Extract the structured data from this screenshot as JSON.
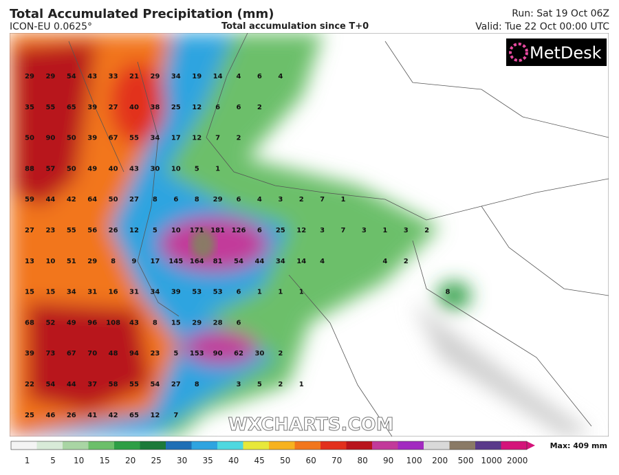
{
  "header": {
    "title": "Total Accumulated Precipitation (mm)",
    "model": "ICON-EU 0.0625°",
    "subtitle": "Total accumulation since T+0",
    "run": "Run: Sat 19 Oct 06Z",
    "valid": "Valid: Tue 22 Oct 00:00 UTC"
  },
  "logo": "MetDesk",
  "watermark": "WXCHARTS.COM",
  "grid_values": [
    [
      29,
      29,
      54,
      43,
      33,
      21,
      29,
      34,
      19,
      14,
      4,
      6,
      4
    ],
    [
      35,
      55,
      65,
      39,
      27,
      40,
      38,
      25,
      12,
      6,
      6,
      2
    ],
    [
      50,
      90,
      50,
      39,
      67,
      55,
      34,
      17,
      12,
      7,
      2
    ],
    [
      88,
      57,
      50,
      49,
      40,
      43,
      30,
      10,
      5,
      1
    ],
    [
      59,
      44,
      42,
      64,
      50,
      27,
      8,
      6,
      8,
      29,
      6,
      4,
      3,
      2,
      7,
      1
    ],
    [
      27,
      23,
      55,
      56,
      26,
      12,
      5,
      10,
      171,
      181,
      126,
      6,
      25,
      12,
      3,
      7,
      3,
      1,
      3,
      2
    ],
    [
      13,
      10,
      51,
      29,
      8,
      9,
      17,
      145,
      164,
      81,
      54,
      44,
      34,
      14,
      4,
      null,
      null,
      4,
      2
    ],
    [
      15,
      15,
      34,
      31,
      16,
      31,
      34,
      39,
      53,
      53,
      6,
      1,
      1,
      1,
      null,
      null,
      null,
      null,
      null,
      null,
      8
    ],
    [
      68,
      52,
      49,
      96,
      108,
      43,
      8,
      15,
      29,
      28,
      6
    ],
    [
      39,
      73,
      67,
      70,
      48,
      94,
      23,
      5,
      153,
      90,
      62,
      30,
      2
    ],
    [
      22,
      54,
      44,
      37,
      58,
      55,
      54,
      27,
      8,
      null,
      3,
      5,
      2,
      1
    ],
    [
      25,
      46,
      26,
      41,
      42,
      65,
      12,
      7
    ]
  ],
  "scale": {
    "labels": [
      1,
      5,
      10,
      15,
      20,
      25,
      30,
      35,
      40,
      45,
      50,
      60,
      70,
      80,
      90,
      100,
      200,
      500,
      1000,
      2000
    ],
    "colors": [
      "#f4f4f4",
      "#d8ead8",
      "#a9d5a4",
      "#6cbf6a",
      "#2e9e45",
      "#1c7a3a",
      "#1f6fb5",
      "#2fa4e0",
      "#4fd8e0",
      "#e8e83a",
      "#f7b21f",
      "#f2761c",
      "#e2301c",
      "#b8141c",
      "#c23a9a",
      "#a22ac0",
      "#d9d9d9",
      "#8a7a66",
      "#5a3a8a",
      "#d4147a"
    ],
    "max": "Max: 409 mm"
  }
}
